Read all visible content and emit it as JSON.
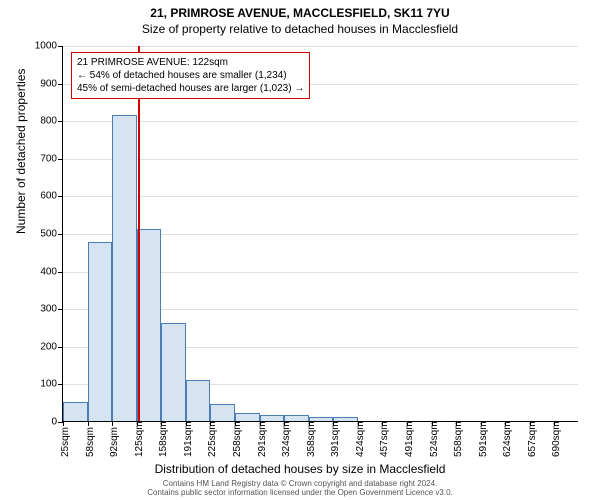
{
  "title_line1": "21, PRIMROSE AVENUE, MACCLESFIELD, SK11 7YU",
  "title_line2": "Size of property relative to detached houses in Macclesfield",
  "ylabel": "Number of detached properties",
  "xlabel": "Distribution of detached houses by size in Macclesfield",
  "chart": {
    "type": "histogram",
    "background_color": "#ffffff",
    "grid_color": "#e0e0e0",
    "axis_color": "#000000",
    "bar_fill": "#d6e3f3",
    "bar_stroke": "#4a7fb5",
    "refline_color": "#d00000",
    "anno_border": "#d00000",
    "ylim": [
      0,
      1000
    ],
    "ytick_step": 100,
    "yticks": [
      0,
      100,
      200,
      300,
      400,
      500,
      600,
      700,
      800,
      900,
      1000
    ],
    "xticks": [
      "25sqm",
      "58sqm",
      "92sqm",
      "125sqm",
      "158sqm",
      "191sqm",
      "225sqm",
      "258sqm",
      "291sqm",
      "324sqm",
      "358sqm",
      "391sqm",
      "424sqm",
      "457sqm",
      "491sqm",
      "524sqm",
      "558sqm",
      "591sqm",
      "624sqm",
      "657sqm",
      "690sqm"
    ],
    "values": [
      50,
      475,
      815,
      510,
      260,
      110,
      45,
      20,
      15,
      15,
      10,
      10,
      0,
      0,
      0,
      0,
      0,
      0,
      0,
      0,
      0
    ],
    "x_min": 25,
    "x_max": 690,
    "refline_x": 122,
    "bar_width_ratio": 1.0
  },
  "annotation": {
    "line1": "21 PRIMROSE AVENUE: 122sqm",
    "line2": "← 54% of detached houses are smaller (1,234)",
    "line3": "45% of semi-detached houses are larger (1,023) →"
  },
  "footer": {
    "line1": "Contains HM Land Registry data © Crown copyright and database right 2024.",
    "line2": "Contains public sector information licensed under the Open Government Licence v3.0."
  },
  "fonts": {
    "title": 12,
    "axis_label": 12,
    "tick": 10,
    "anno": 10,
    "footer": 8
  }
}
